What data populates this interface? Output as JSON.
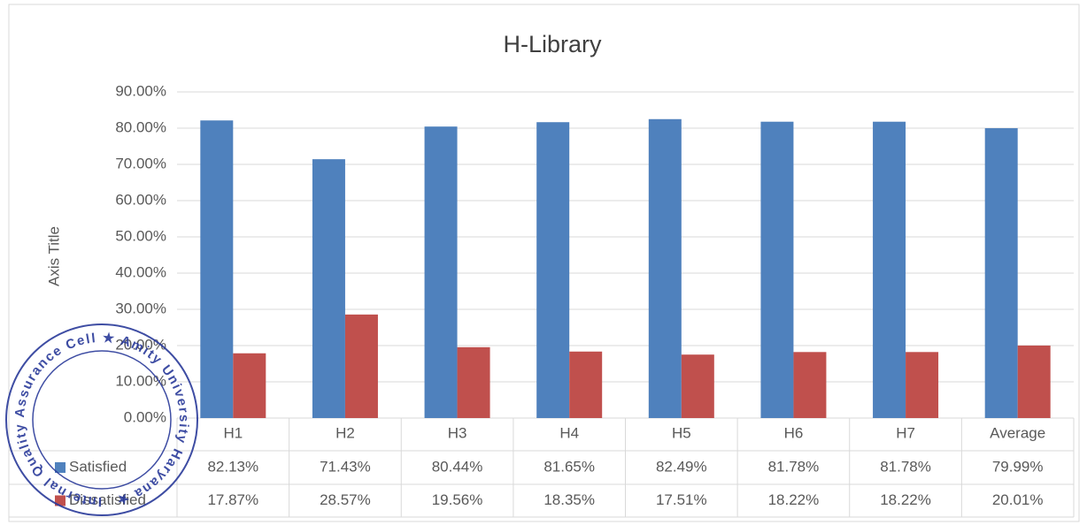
{
  "chart_data": {
    "type": "bar",
    "title": "H-Library",
    "y_label": "Axis Title",
    "categories": [
      "H1",
      "H2",
      "H3",
      "H4",
      "H5",
      "H6",
      "H7",
      "Average"
    ],
    "series": [
      {
        "name": "Satisfied",
        "color": "#4f81bd",
        "values": [
          82.13,
          71.43,
          80.44,
          81.65,
          82.49,
          81.78,
          81.78,
          79.99
        ],
        "value_labels": [
          "82.13%",
          "71.43%",
          "80.44%",
          "81.65%",
          "82.49%",
          "81.78%",
          "81.78%",
          "79.99%"
        ]
      },
      {
        "name": "Dissatisfied",
        "color": "#c0504d",
        "values": [
          17.87,
          28.57,
          19.56,
          18.35,
          17.51,
          18.22,
          18.22,
          20.01
        ],
        "value_labels": [
          "17.87%",
          "28.57%",
          "19.56%",
          "18.35%",
          "17.51%",
          "18.22%",
          "18.22%",
          "20.01%"
        ]
      }
    ],
    "ylim": [
      0,
      90
    ],
    "yticks": [
      {
        "value": 0,
        "label": "0.00%"
      },
      {
        "value": 10,
        "label": "10.00%"
      },
      {
        "value": 20,
        "label": "20.00%"
      },
      {
        "value": 30,
        "label": "30.00%"
      },
      {
        "value": 40,
        "label": "40.00%"
      },
      {
        "value": 50,
        "label": "50.00%"
      },
      {
        "value": 60,
        "label": "60.00%"
      },
      {
        "value": 70,
        "label": "70.00%"
      },
      {
        "value": 80,
        "label": "80.00%"
      },
      {
        "value": 90,
        "label": "90.00%"
      }
    ],
    "grid": true
  },
  "stamp": {
    "text": "Internal Quality Assurance Cell ★ Amity University Haryana ★"
  }
}
